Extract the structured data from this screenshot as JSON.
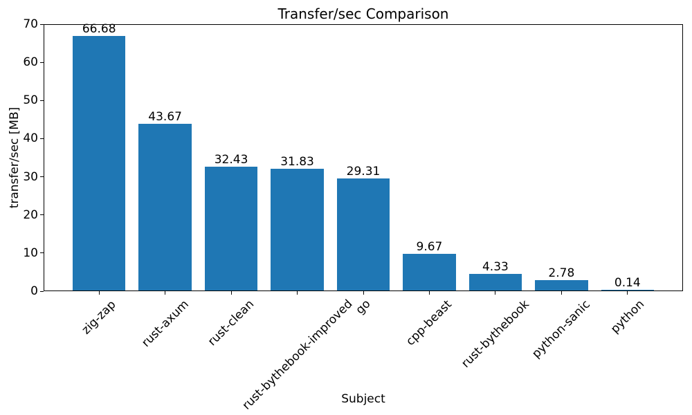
{
  "chart_data": {
    "type": "bar",
    "title": "Transfer/sec Comparison",
    "xlabel": "Subject",
    "ylabel": "transfer/sec [MB]",
    "categories": [
      "zig-zap",
      "rust-axum",
      "rust-clean",
      "rust-bythebook-improved",
      "go",
      "cpp-beast",
      "rust-bythebook",
      "python-sanic",
      "python"
    ],
    "values": [
      66.68,
      43.67,
      32.43,
      31.83,
      29.31,
      9.67,
      4.33,
      2.78,
      0.14
    ],
    "bar_labels": [
      "66.68",
      "43.67",
      "32.43",
      "31.83",
      "29.31",
      "9.67",
      "4.33",
      "2.78",
      "0.14"
    ],
    "y_ticks": [
      0,
      10,
      20,
      30,
      40,
      50,
      60,
      70
    ],
    "ylim": [
      0,
      70
    ],
    "bar_color": "#1f77b4",
    "axis_color": "#000000",
    "background_color": "#ffffff",
    "grid": false,
    "legend": "none",
    "x_tick_rotation_deg": 45
  }
}
